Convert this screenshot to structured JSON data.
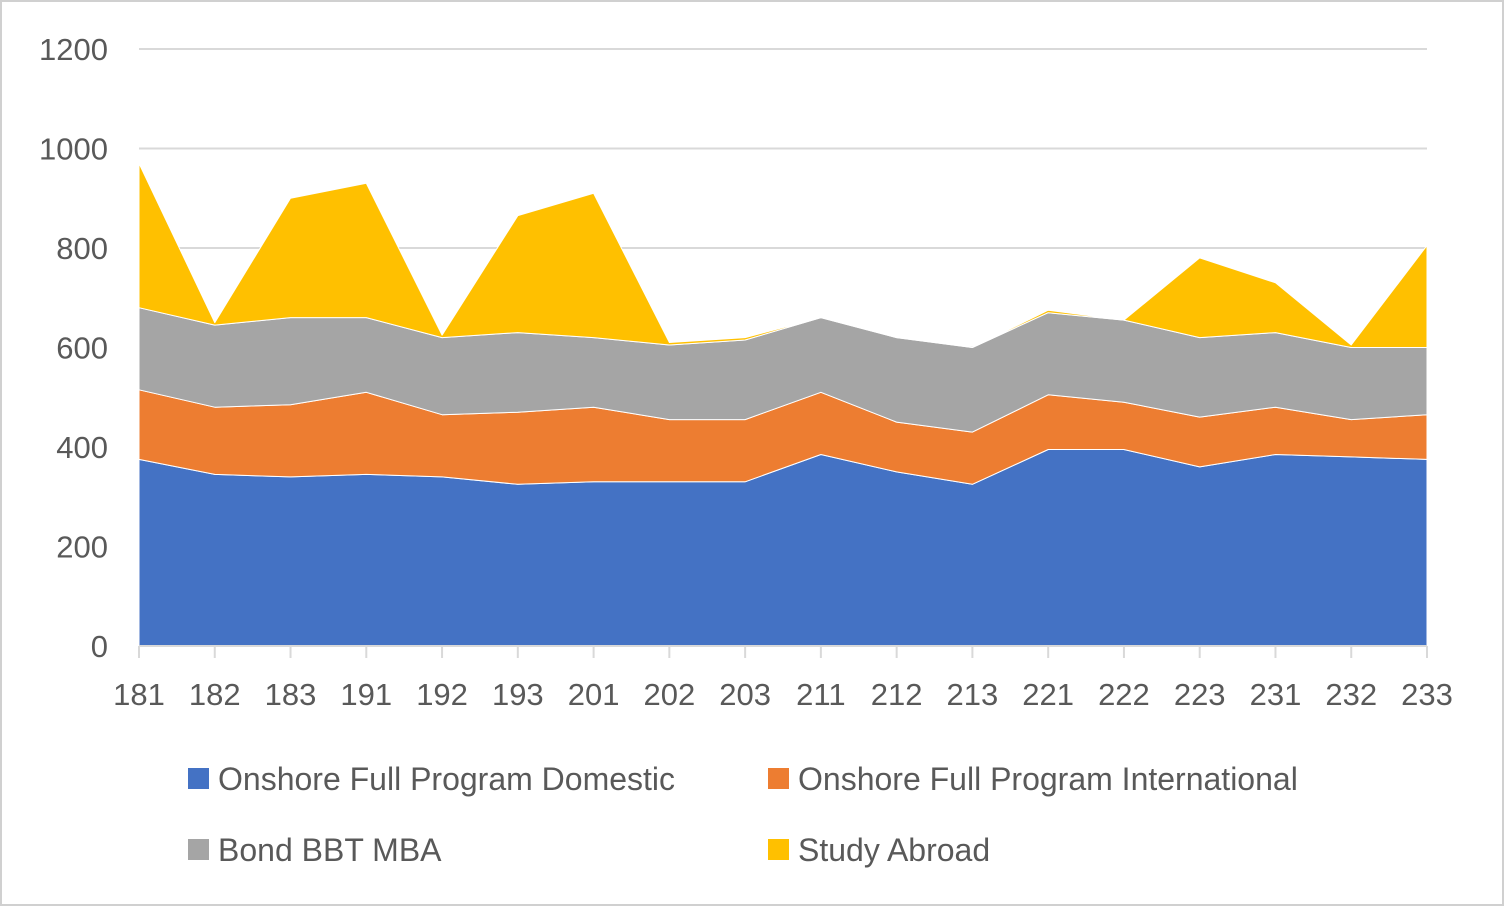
{
  "chart_data": {
    "type": "area",
    "stacked": true,
    "title": "",
    "xlabel": "",
    "ylabel": "",
    "ylim": [
      0,
      1200
    ],
    "yticks": [
      0,
      200,
      400,
      600,
      800,
      1000,
      1200
    ],
    "grid": true,
    "legend_position": "bottom",
    "categories": [
      "181",
      "182",
      "183",
      "191",
      "192",
      "193",
      "201",
      "202",
      "203",
      "211",
      "212",
      "213",
      "221",
      "222",
      "223",
      "231",
      "232",
      "233"
    ],
    "series": [
      {
        "name": "Onshore Full Program Domestic",
        "color": "#4472C4",
        "values": [
          375,
          345,
          340,
          345,
          340,
          325,
          330,
          330,
          330,
          385,
          350,
          325,
          395,
          395,
          360,
          385,
          380,
          375
        ]
      },
      {
        "name": "Onshore Full Program International",
        "color": "#ED7D31",
        "values": [
          140,
          135,
          145,
          165,
          125,
          145,
          150,
          125,
          125,
          125,
          100,
          105,
          110,
          95,
          100,
          95,
          75,
          90
        ]
      },
      {
        "name": "Bond BBT MBA",
        "color": "#A5A5A5",
        "values": [
          165,
          165,
          175,
          150,
          155,
          160,
          140,
          150,
          160,
          150,
          170,
          170,
          165,
          165,
          160,
          150,
          145,
          135
        ]
      },
      {
        "name": "Study Abroad",
        "color": "#FFC000",
        "values": [
          290,
          5,
          240,
          270,
          5,
          235,
          290,
          5,
          5,
          0,
          0,
          0,
          5,
          0,
          160,
          100,
          5,
          205
        ]
      }
    ]
  }
}
